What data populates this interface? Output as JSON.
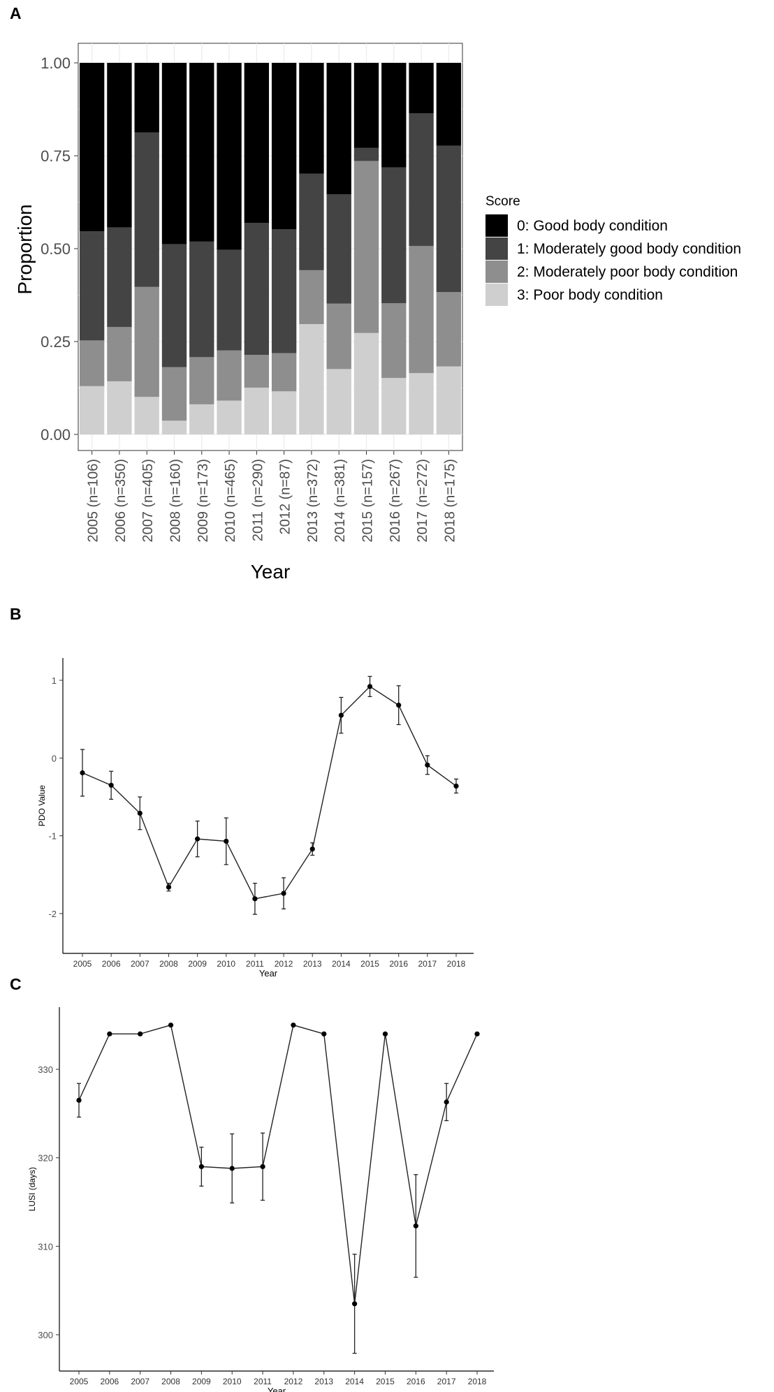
{
  "panels": {
    "a": "A",
    "b": "B",
    "c": "C"
  },
  "chart_data": [
    {
      "type": "bar",
      "stacked": true,
      "ylabel": "Proportion",
      "xlabel": "Year",
      "ylim": [
        0,
        1
      ],
      "yticks": [
        "0.00",
        "0.25",
        "0.50",
        "0.75",
        "1.00"
      ],
      "categories": [
        "2005 (n=106)",
        "2006 (n=350)",
        "2007 (n=405)",
        "2008 (n=160)",
        "2009 (n=173)",
        "2010 (n=465)",
        "2011 (n=290)",
        "2012 (n=87)",
        "2013 (n=372)",
        "2014 (n=381)",
        "2015 (n=157)",
        "2016 (n=267)",
        "2017 (n=272)",
        "2018 (n=175)"
      ],
      "legend_title": "Score",
      "legend_position": "right",
      "grid": true,
      "series": [
        {
          "name": "0: Good body condition",
          "color": "#000000",
          "values": [
            0.453,
            0.443,
            0.187,
            0.488,
            0.481,
            0.503,
            0.431,
            0.448,
            0.298,
            0.354,
            0.229,
            0.281,
            0.136,
            0.223
          ]
        },
        {
          "name": "1: Moderately good body condition",
          "color": "#444444",
          "values": [
            0.294,
            0.268,
            0.416,
            0.331,
            0.311,
            0.271,
            0.355,
            0.333,
            0.26,
            0.294,
            0.035,
            0.366,
            0.357,
            0.394
          ]
        },
        {
          "name": "2: Moderately poor body condition",
          "color": "#8e8e8e",
          "values": [
            0.123,
            0.146,
            0.296,
            0.144,
            0.127,
            0.135,
            0.088,
            0.103,
            0.145,
            0.176,
            0.463,
            0.201,
            0.342,
            0.2
          ]
        },
        {
          "name": "3: Poor body condition",
          "color": "#cfcfcf",
          "values": [
            0.13,
            0.143,
            0.101,
            0.037,
            0.081,
            0.091,
            0.126,
            0.116,
            0.297,
            0.176,
            0.273,
            0.152,
            0.165,
            0.183
          ]
        }
      ]
    },
    {
      "type": "line",
      "ylabel": "PDO Value",
      "xlabel": "Year",
      "ylim": [
        -2.2,
        1.2
      ],
      "yticks": [
        -2,
        -1,
        0,
        1
      ],
      "x": [
        "2005",
        "2006",
        "2007",
        "2008",
        "2009",
        "2010",
        "2011",
        "2012",
        "2013",
        "2014",
        "2015",
        "2016",
        "2017",
        "2018"
      ],
      "series": [
        {
          "values": [
            -0.19,
            -0.35,
            -0.71,
            -1.66,
            -1.04,
            -1.07,
            -1.81,
            -1.74,
            -1.17,
            0.55,
            0.92,
            0.68,
            -0.09,
            -0.36
          ],
          "err": [
            0.3,
            0.18,
            0.21,
            0.05,
            0.23,
            0.3,
            0.2,
            0.2,
            0.08,
            0.23,
            0.13,
            0.25,
            0.12,
            0.09
          ]
        }
      ]
    },
    {
      "type": "line",
      "ylabel": "LUSI (days)",
      "xlabel": "Year",
      "ylim": [
        297,
        337.5
      ],
      "yticks": [
        300,
        310,
        320,
        330
      ],
      "x": [
        "2005",
        "2006",
        "2007",
        "2008",
        "2009",
        "2010",
        "2011",
        "2012",
        "2013",
        "2014",
        "2015",
        "2016",
        "2017",
        "2018"
      ],
      "series": [
        {
          "values": [
            326.5,
            334,
            334,
            335,
            319,
            318.8,
            319,
            335,
            334,
            303.5,
            334,
            312.3,
            326.3,
            334
          ],
          "err": [
            1.9,
            0,
            0,
            0,
            2.2,
            3.9,
            3.8,
            0,
            0,
            5.6,
            0,
            5.8,
            2.1,
            0
          ]
        }
      ]
    }
  ]
}
